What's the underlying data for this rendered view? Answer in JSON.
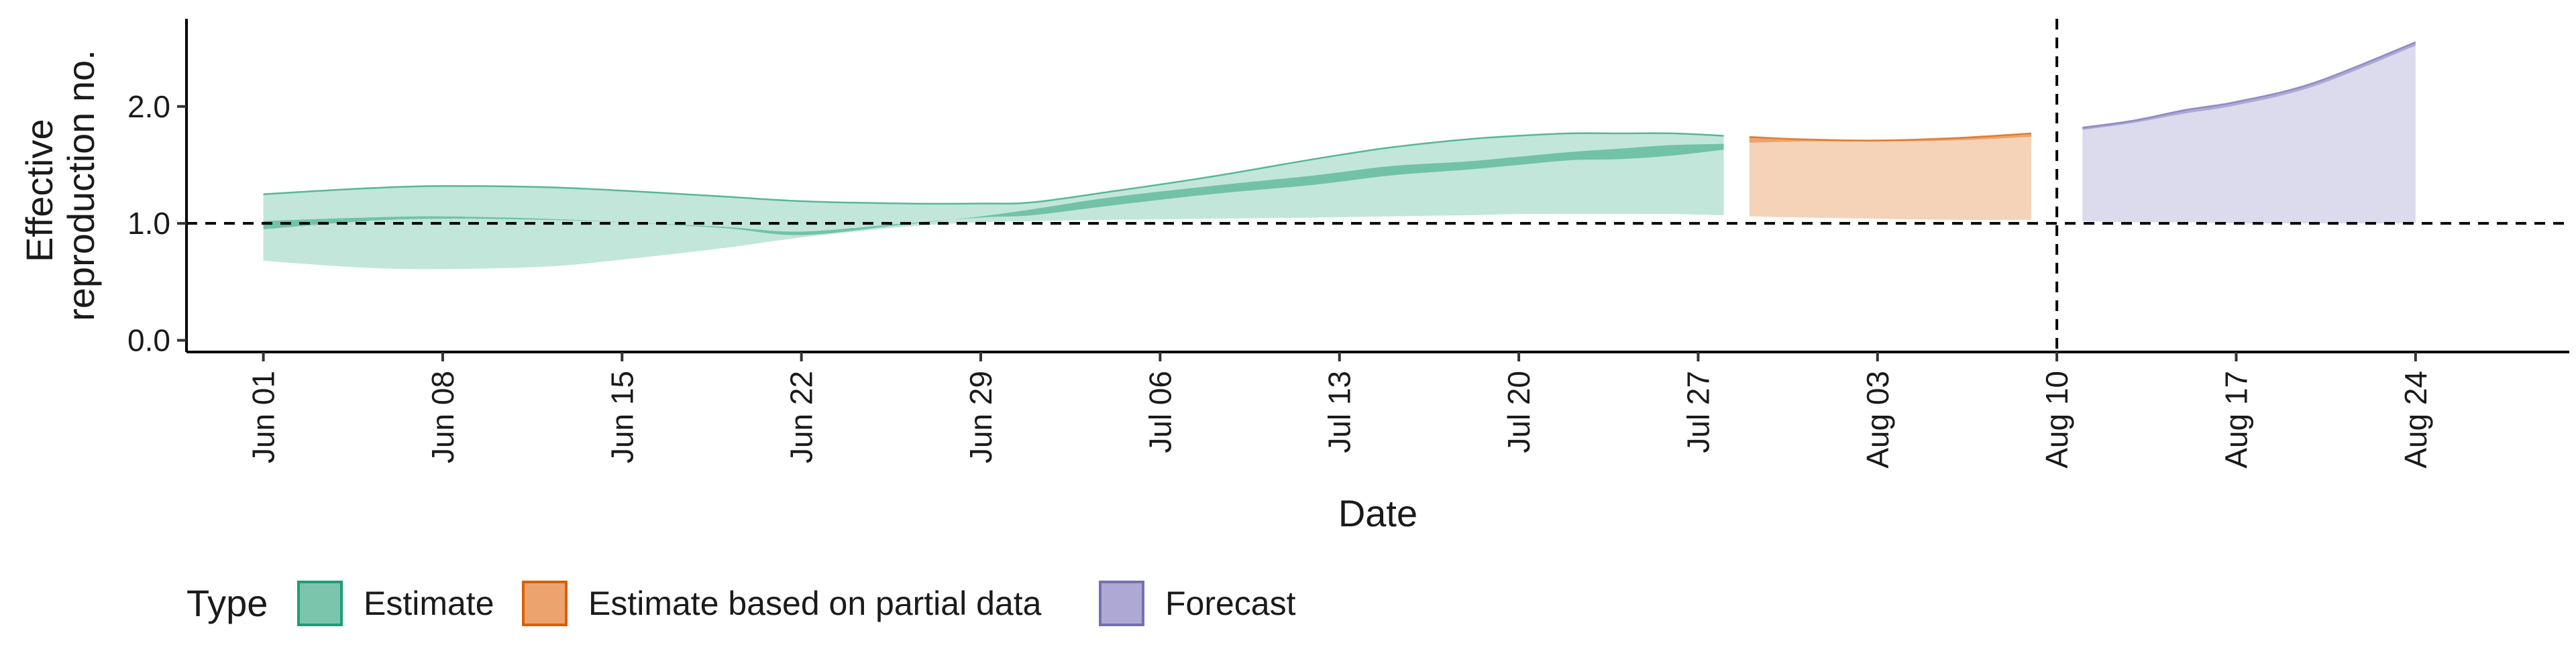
{
  "chart_data": {
    "type": "area",
    "xlabel": "Date",
    "ylabel_lines": [
      "Effective",
      "reproduction no."
    ],
    "x_start": "2021-05-29",
    "x_end": "2021-08-30",
    "ylim": [
      -0.1,
      2.75
    ],
    "reference_line_y": 1.0,
    "reference_line_x": "2021-08-10",
    "x_ticks": [
      {
        "date": "2021-06-01",
        "label": "Jun 01"
      },
      {
        "date": "2021-06-08",
        "label": "Jun 08"
      },
      {
        "date": "2021-06-15",
        "label": "Jun 15"
      },
      {
        "date": "2021-06-22",
        "label": "Jun 22"
      },
      {
        "date": "2021-06-29",
        "label": "Jun 29"
      },
      {
        "date": "2021-07-06",
        "label": "Jul 06"
      },
      {
        "date": "2021-07-13",
        "label": "Jul 13"
      },
      {
        "date": "2021-07-20",
        "label": "Jul 20"
      },
      {
        "date": "2021-07-27",
        "label": "Jul 27"
      },
      {
        "date": "2021-08-03",
        "label": "Aug 03"
      },
      {
        "date": "2021-08-10",
        "label": "Aug 10"
      },
      {
        "date": "2021-08-17",
        "label": "Aug 17"
      },
      {
        "date": "2021-08-24",
        "label": "Aug 24"
      }
    ],
    "y_ticks": [
      {
        "value": 0.0,
        "label": "0.0"
      },
      {
        "value": 1.0,
        "label": "1.0"
      },
      {
        "value": 2.0,
        "label": "2.0"
      }
    ],
    "legend": {
      "title": "Type",
      "position": "bottom",
      "items": [
        {
          "label": "Estimate",
          "fill": "#7cc5ad",
          "stroke": "#1b9e77"
        },
        {
          "label": "Estimate based on partial data",
          "fill": "#eda36e",
          "stroke": "#d95f02"
        },
        {
          "label": "Forecast",
          "fill": "#ada9d4",
          "stroke": "#7570b3"
        }
      ]
    },
    "series": [
      {
        "name": "Estimate",
        "color": "#1b9e77",
        "outer_fill": "#c2e6da",
        "inner_fill": "#72c2a7",
        "dates": [
          "2021-06-01",
          "2021-06-05",
          "2021-06-08",
          "2021-06-12",
          "2021-06-15",
          "2021-06-19",
          "2021-06-22",
          "2021-06-26",
          "2021-06-29",
          "2021-07-01",
          "2021-07-04",
          "2021-07-08",
          "2021-07-12",
          "2021-07-15",
          "2021-07-18",
          "2021-07-20",
          "2021-07-22",
          "2021-07-24",
          "2021-07-26",
          "2021-07-28"
        ],
        "lower_90": [
          0.68,
          0.62,
          0.61,
          0.63,
          0.69,
          0.79,
          0.88,
          0.97,
          1.01,
          1.02,
          1.03,
          1.04,
          1.05,
          1.06,
          1.07,
          1.08,
          1.08,
          1.08,
          1.08,
          1.07
        ],
        "lower_50": [
          0.95,
          1.02,
          1.04,
          1.03,
          1.01,
          0.97,
          0.93,
          1.0,
          1.05,
          1.07,
          1.15,
          1.25,
          1.33,
          1.41,
          1.46,
          1.5,
          1.54,
          1.55,
          1.58,
          1.63
        ],
        "upper_50": [
          1.02,
          1.05,
          1.06,
          1.04,
          1.01,
          0.96,
          0.9,
          0.99,
          1.06,
          1.12,
          1.22,
          1.32,
          1.41,
          1.49,
          1.53,
          1.57,
          1.61,
          1.64,
          1.67,
          1.68
        ],
        "upper_90": [
          1.25,
          1.3,
          1.32,
          1.31,
          1.28,
          1.23,
          1.19,
          1.17,
          1.17,
          1.18,
          1.27,
          1.4,
          1.55,
          1.65,
          1.72,
          1.75,
          1.77,
          1.77,
          1.77,
          1.75
        ]
      },
      {
        "name": "Estimate based on partial data",
        "color": "#d95f02",
        "outer_fill": "#f5d3b8",
        "inner_fill": "#eda36e",
        "dates": [
          "2021-07-29",
          "2021-07-31",
          "2021-08-03",
          "2021-08-06",
          "2021-08-09"
        ],
        "lower_90": [
          1.06,
          1.05,
          1.04,
          1.03,
          1.03
        ],
        "lower_50": [
          1.69,
          1.7,
          1.7,
          1.71,
          1.74
        ],
        "upper_50": [
          1.74,
          1.72,
          1.71,
          1.73,
          1.77
        ],
        "upper_90": [
          1.74,
          1.72,
          1.71,
          1.73,
          1.77
        ]
      },
      {
        "name": "Forecast",
        "color": "#7570b3",
        "outer_fill": "#dcdaed",
        "inner_fill": "#ada9d4",
        "dates": [
          "2021-08-11",
          "2021-08-13",
          "2021-08-15",
          "2021-08-17",
          "2021-08-20",
          "2021-08-24"
        ],
        "lower_90": [
          1.02,
          1.01,
          1.01,
          1.0,
          1.0,
          1.0
        ],
        "lower_50": [
          1.8,
          1.86,
          1.94,
          2.01,
          2.17,
          2.52
        ],
        "upper_50": [
          1.82,
          1.88,
          1.97,
          2.04,
          2.2,
          2.55
        ],
        "upper_90": [
          1.82,
          1.88,
          1.97,
          2.04,
          2.2,
          2.55
        ]
      }
    ]
  }
}
